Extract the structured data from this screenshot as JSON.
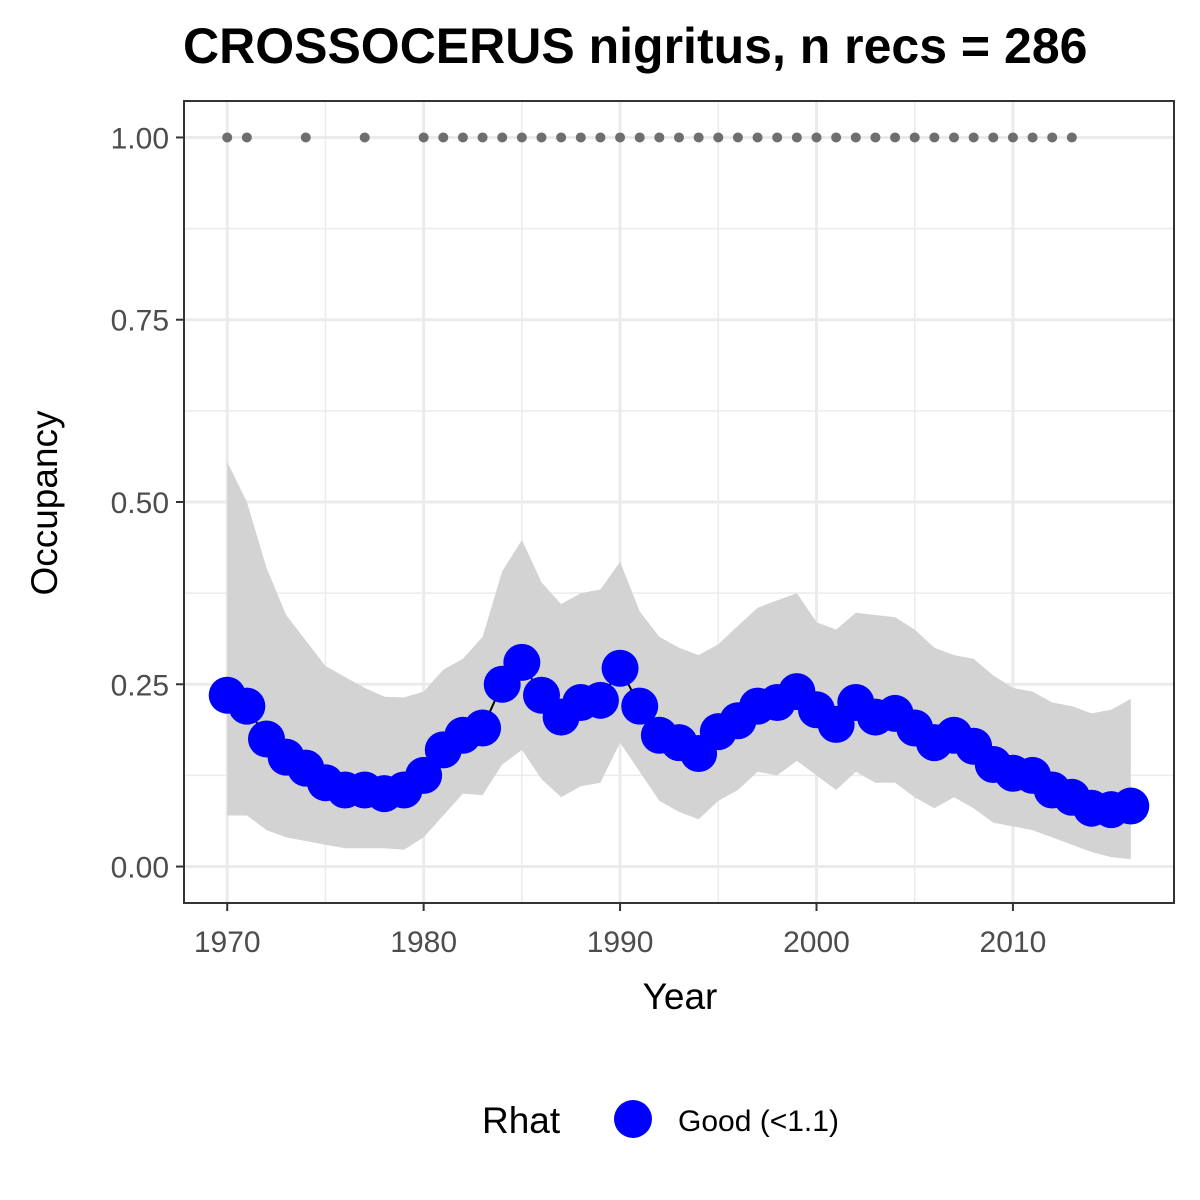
{
  "chart_data": {
    "type": "line",
    "title": "CROSSOCERUS nigritus, n recs = 286",
    "xlabel": "Year",
    "ylabel": "Occupancy",
    "xlim": [
      1967.8,
      2018.2
    ],
    "ylim": [
      -0.05,
      1.05
    ],
    "x_ticks": [
      1970,
      1980,
      1990,
      2000,
      2010
    ],
    "x_tick_labels": [
      "1970",
      "1980",
      "1990",
      "2000",
      "2010"
    ],
    "y_ticks": [
      0,
      0.25,
      0.5,
      0.75,
      1.0
    ],
    "y_tick_labels": [
      "0.00",
      "0.25",
      "0.50",
      "0.75",
      "1.00"
    ],
    "grid": true,
    "colors": {
      "points": "#0000ff",
      "ribbon": "#d3d3d3",
      "records": "#6e6e6e",
      "line": "#000000",
      "grid": "#ebebeb",
      "border": "#333333"
    },
    "legend": {
      "title": "Rhat",
      "position": "bottom",
      "entries": [
        "Good (<1.1)"
      ]
    },
    "years": [
      1970,
      1971,
      1972,
      1973,
      1974,
      1975,
      1976,
      1977,
      1978,
      1979,
      1980,
      1981,
      1982,
      1983,
      1984,
      1985,
      1986,
      1987,
      1988,
      1989,
      1990,
      1991,
      1992,
      1993,
      1994,
      1995,
      1996,
      1997,
      1998,
      1999,
      2000,
      2001,
      2002,
      2003,
      2004,
      2005,
      2006,
      2007,
      2008,
      2009,
      2010,
      2011,
      2012,
      2013,
      2014,
      2015,
      2016
    ],
    "series": [
      {
        "name": "Occupancy (Rhat: Good (<1.1))",
        "values": [
          0.235,
          0.22,
          0.175,
          0.15,
          0.135,
          0.115,
          0.105,
          0.105,
          0.1,
          0.105,
          0.125,
          0.16,
          0.18,
          0.19,
          0.25,
          0.28,
          0.235,
          0.205,
          0.225,
          0.228,
          0.272,
          0.22,
          0.18,
          0.17,
          0.155,
          0.185,
          0.2,
          0.22,
          0.225,
          0.24,
          0.215,
          0.195,
          0.225,
          0.205,
          0.21,
          0.19,
          0.17,
          0.18,
          0.165,
          0.14,
          0.128,
          0.125,
          0.105,
          0.095,
          0.08,
          0.078,
          0.083
        ]
      }
    ],
    "ci_upper": [
      0.555,
      0.5,
      0.41,
      0.345,
      0.31,
      0.275,
      0.26,
      0.245,
      0.233,
      0.232,
      0.24,
      0.27,
      0.285,
      0.315,
      0.405,
      0.448,
      0.39,
      0.36,
      0.375,
      0.38,
      0.418,
      0.35,
      0.315,
      0.3,
      0.29,
      0.305,
      0.33,
      0.355,
      0.365,
      0.375,
      0.335,
      0.325,
      0.348,
      0.345,
      0.342,
      0.325,
      0.3,
      0.29,
      0.285,
      0.262,
      0.245,
      0.24,
      0.225,
      0.22,
      0.21,
      0.215,
      0.23
    ],
    "ci_lower": [
      0.07,
      0.07,
      0.05,
      0.04,
      0.035,
      0.03,
      0.025,
      0.025,
      0.025,
      0.023,
      0.04,
      0.07,
      0.1,
      0.098,
      0.14,
      0.16,
      0.12,
      0.095,
      0.11,
      0.115,
      0.17,
      0.13,
      0.09,
      0.075,
      0.065,
      0.09,
      0.105,
      0.13,
      0.125,
      0.145,
      0.125,
      0.105,
      0.13,
      0.115,
      0.115,
      0.095,
      0.08,
      0.095,
      0.08,
      0.06,
      0.055,
      0.05,
      0.04,
      0.03,
      0.02,
      0.013,
      0.01
    ],
    "records_y": 1.0,
    "record_years": [
      1970,
      1971,
      1974,
      1977,
      1980,
      1981,
      1982,
      1983,
      1984,
      1985,
      1986,
      1987,
      1988,
      1989,
      1990,
      1991,
      1992,
      1993,
      1994,
      1995,
      1996,
      1997,
      1998,
      1999,
      2000,
      2001,
      2002,
      2003,
      2004,
      2005,
      2006,
      2007,
      2008,
      2009,
      2010,
      2011,
      2012,
      2013
    ]
  }
}
